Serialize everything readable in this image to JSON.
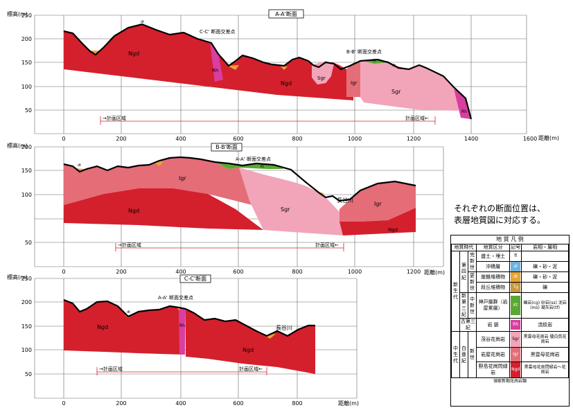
{
  "sections": [
    {
      "id": "aa",
      "title": "A-A'断面",
      "ylabel": "標高(m)",
      "xlabel": "距離(m)",
      "yticks": [
        "250",
        "200",
        "150",
        "100",
        "50"
      ],
      "xticks": [
        "0",
        "200",
        "400",
        "600",
        "800",
        "1000",
        "1200",
        "1400",
        "1600"
      ],
      "labels": {
        "ngd": "Ngd",
        "rh": "Rh",
        "ngd2": "Ngd",
        "sgr1": "Sgr",
        "igr": "Igr",
        "sgr2": "Sgr",
        "rh2": "Rh",
        "dt1": "dt",
        "dt2": "dt",
        "kt": "Kt"
      },
      "cross1": "C-C' 断面交差点",
      "cross2": "B-B' 断面交差点",
      "plan_left": "→計画区域",
      "plan_right": "計画区域←"
    },
    {
      "id": "bb",
      "title": "B-B'断面",
      "ylabel": "標高(m)",
      "xlabel": "距離(m)",
      "yticks": [
        "200",
        "150",
        "100",
        "50"
      ],
      "xticks": [
        "0",
        "200",
        "400",
        "600",
        "800",
        "1000",
        "1200"
      ],
      "labels": {
        "igr1": "Igr",
        "ngd": "Ngd",
        "sgr": "Sgr",
        "igr2": "Igr",
        "ngd2": "Ngd",
        "kt": "Kt",
        "dt": "dt"
      },
      "cross": "A-A' 断面交差点",
      "river": "長谷川",
      "plan_left": "→計画区域",
      "plan_right": "計画区域←"
    },
    {
      "id": "cc",
      "title": "C-C'断面",
      "ylabel": "標高(m)",
      "xlabel": "距離(m)",
      "yticks": [
        "250",
        "200",
        "150",
        "100",
        "50"
      ],
      "xticks": [
        "0",
        "200",
        "400",
        "600",
        "800"
      ],
      "labels": {
        "ngd1": "Ngd",
        "rh": "Rh",
        "ngd2": "Ngd",
        "dt": "dt"
      },
      "cross": "A-A' 断面交差点",
      "river": "長谷川",
      "plan_left": "→計画区域",
      "plan_right": "計画区域←"
    }
  ],
  "note_line1": "それぞれの断面位置は、",
  "note_line2": "表層地質図に対応する。",
  "legend": {
    "title": "地 質 凡 例",
    "headers": [
      "地質時代",
      "地質区分",
      "記号",
      "岩相・層相"
    ],
    "era_cenozoic": "新生代",
    "era_mesozoic": "中生代",
    "period_q": "第四紀",
    "period_n": "新第三紀",
    "period_p": "古第三紀",
    "period_k": "白亜紀",
    "epoch_holo": "完新世",
    "epoch_pleis": "更新世",
    "epoch_mio": "中新世",
    "epoch_cret": "新世",
    "group_lyoke": "領家新期花崗岩類",
    "rows": [
      {
        "name": "盛土・埋土",
        "code": "fl",
        "color": "#ffffff",
        "text": "",
        "lith": ""
      },
      {
        "name": "沖積層",
        "code": "al",
        "color": "#6fb2e0",
        "text": "#fff",
        "lith": "礫・砂・泥"
      },
      {
        "name": "崖錐堆積物",
        "code": "dt",
        "color": "#e8a433",
        "text": "#fff",
        "lith": "礫・砂・泥"
      },
      {
        "name": "段丘堆積物",
        "code": "Tg",
        "color": "#c8963c",
        "text": "#fff",
        "lith": "礫"
      },
      {
        "name": "神戸層群（岩屋累層）",
        "code": "Kt",
        "color": "#5aa834",
        "text": "#fff",
        "lith": "礫岩(cg) 砂岩(ss) 泥岩(ms) 凝灰岩(tf)"
      },
      {
        "name": "岩 脈",
        "code": "Rh",
        "color": "#d93ea0",
        "text": "#fff",
        "lith": "流紋岩"
      },
      {
        "name": "茂谷花崗岩",
        "code": "Sgr",
        "color": "#f2a5b8",
        "text": "#000",
        "lith": "黒雲母花崗岩 優白質花崗岩"
      },
      {
        "name": "岩屋花崗岩",
        "code": "Igr",
        "color": "#e46d78",
        "text": "#fff",
        "lith": "黒雲母花崗岩"
      },
      {
        "name": "野島花崗閃緑岩",
        "code": "Ngd",
        "color": "#d4202c",
        "text": "#fff",
        "lith": "黒雲母花崗閃緑岩〜花崗岩"
      }
    ]
  },
  "colors": {
    "ngd": "#d4202c",
    "igr": "#e46d78",
    "sgr": "#f2a5b8",
    "rh": "#d93ea0",
    "kt": "#5aa834",
    "dt": "#e8a433",
    "grid": "#555555",
    "plan": "#d4202c"
  }
}
